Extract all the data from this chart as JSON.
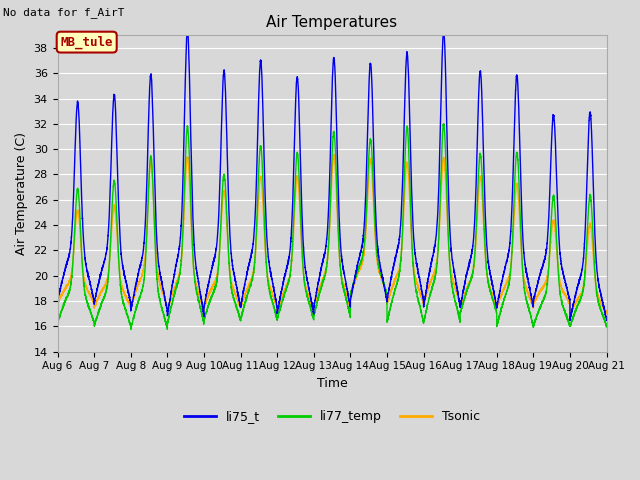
{
  "title": "Air Temperatures",
  "no_data_text": "No data for f_AirT",
  "xlabel": "Time",
  "ylabel": "Air Temperature (C)",
  "ylim": [
    14,
    39
  ],
  "yticks": [
    14,
    16,
    18,
    20,
    22,
    24,
    26,
    28,
    30,
    32,
    34,
    36,
    38
  ],
  "bg_color": "#d8d8d8",
  "plot_bg_color": "#d8d8d8",
  "legend_labels": [
    "li75_t",
    "li77_temp",
    "Tsonic"
  ],
  "legend_colors": [
    "#0000ee",
    "#00cc00",
    "#ffaa00"
  ],
  "annotation_text": "MB_tule",
  "annotation_bg": "#ffffbb",
  "annotation_border": "#aa0000",
  "annotation_text_color": "#aa0000",
  "x_start": 6,
  "x_end": 21,
  "x_ticks": [
    6,
    7,
    8,
    9,
    10,
    11,
    12,
    13,
    14,
    15,
    16,
    17,
    18,
    19,
    20,
    21
  ],
  "x_tick_labels": [
    "Aug 6",
    "Aug 7",
    "Aug 8",
    "Aug 9",
    "Aug 10",
    "Aug 11",
    "Aug 12",
    "Aug 13",
    "Aug 14",
    "Aug 15",
    "Aug 16",
    "Aug 17",
    "Aug 18",
    "Aug 19",
    "Aug 20",
    "Aug 21"
  ],
  "peaks_blue": [
    31.7,
    32.2,
    33.5,
    36.5,
    33.8,
    34.5,
    33.3,
    34.7,
    34.4,
    35.1,
    36.5,
    33.8,
    33.5,
    30.8,
    30.8
  ],
  "peaks_green": [
    25.5,
    26.0,
    27.7,
    29.8,
    26.5,
    28.5,
    28.0,
    29.5,
    29.2,
    29.8,
    30.0,
    28.0,
    28.0,
    25.0,
    25.0
  ],
  "peaks_orange": [
    24.2,
    24.5,
    27.5,
    27.8,
    25.5,
    26.5,
    26.5,
    28.0,
    27.8,
    27.5,
    27.8,
    26.5,
    26.0,
    23.5,
    23.2
  ],
  "troughs_blue": [
    18.0,
    17.8,
    17.2,
    16.8,
    17.5,
    17.5,
    17.0,
    17.5,
    18.0,
    18.0,
    17.5,
    17.5,
    17.5,
    18.0,
    16.5
  ],
  "troughs_green": [
    16.3,
    16.0,
    15.8,
    16.2,
    16.5,
    16.5,
    16.5,
    16.8,
    18.5,
    16.3,
    16.3,
    17.0,
    16.0,
    16.0,
    16.0
  ],
  "troughs_orange": [
    17.8,
    17.5,
    17.5,
    17.2,
    17.5,
    17.5,
    17.2,
    17.5,
    18.5,
    17.8,
    17.8,
    17.5,
    17.5,
    17.8,
    17.0
  ]
}
